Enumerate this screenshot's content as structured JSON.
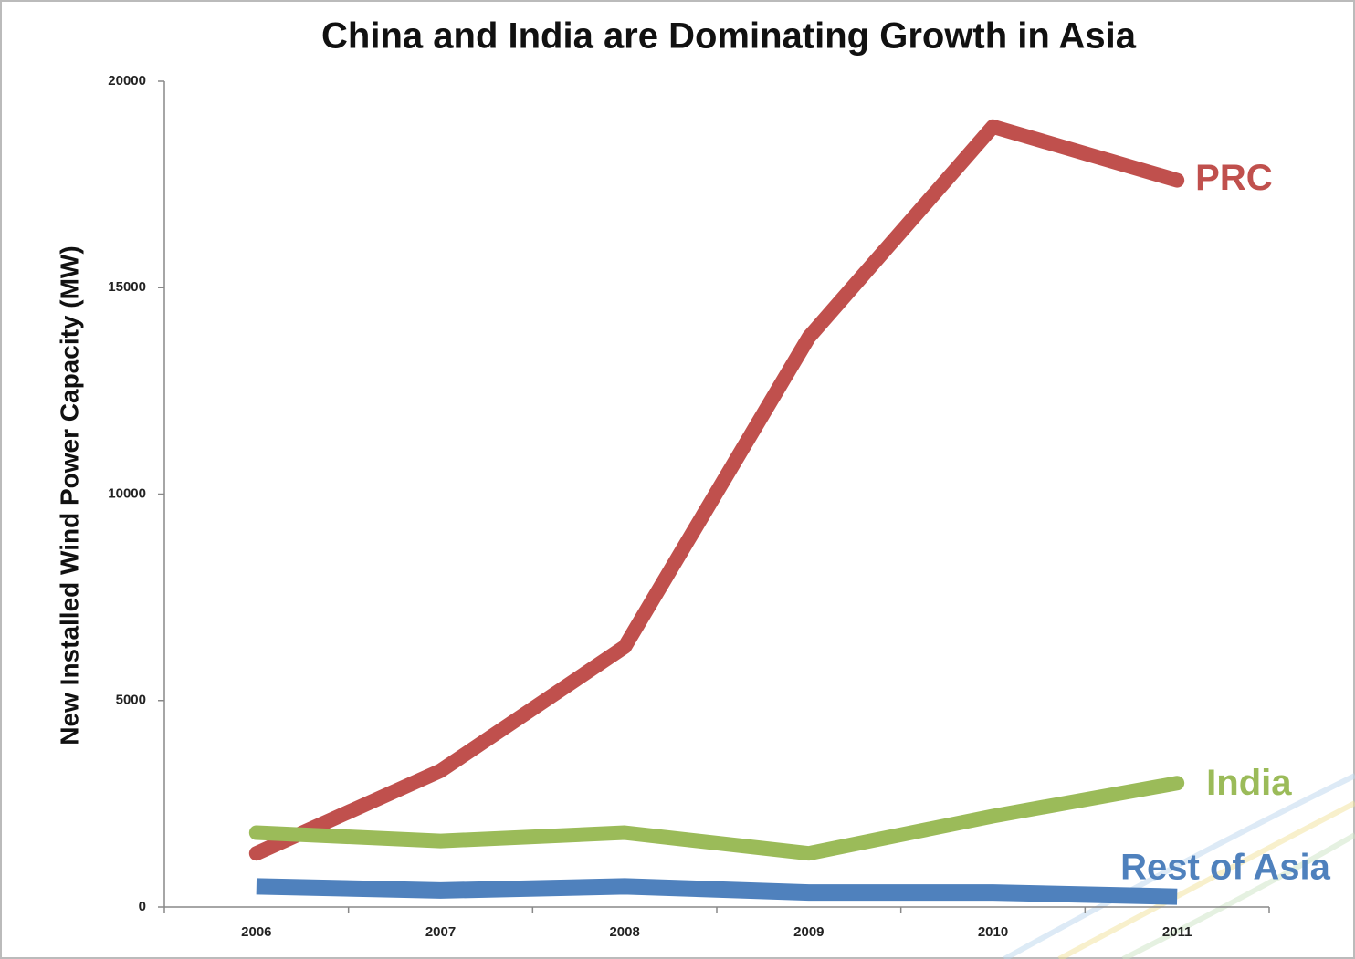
{
  "chart_data": {
    "type": "line",
    "title": "China and India are Dominating Growth in Asia",
    "y_label": "New Installed Wind Power Capacity (MW)",
    "categories": [
      "2006",
      "2007",
      "2008",
      "2009",
      "2010",
      "2011"
    ],
    "series": [
      {
        "name": "PRC",
        "color": "#c0504d",
        "values": [
          1300,
          3300,
          6300,
          13800,
          18900,
          17600
        ]
      },
      {
        "name": "India",
        "color": "#9bbb59",
        "values": [
          1800,
          1600,
          1800,
          1300,
          2200,
          3000
        ]
      },
      {
        "name": "Rest of Asia",
        "color": "#4f81bd",
        "values": [
          500,
          400,
          500,
          350,
          350,
          250
        ]
      }
    ],
    "ylim": [
      0,
      20000
    ],
    "yticks": [
      0,
      5000,
      10000,
      15000,
      20000
    ],
    "grid": false
  }
}
